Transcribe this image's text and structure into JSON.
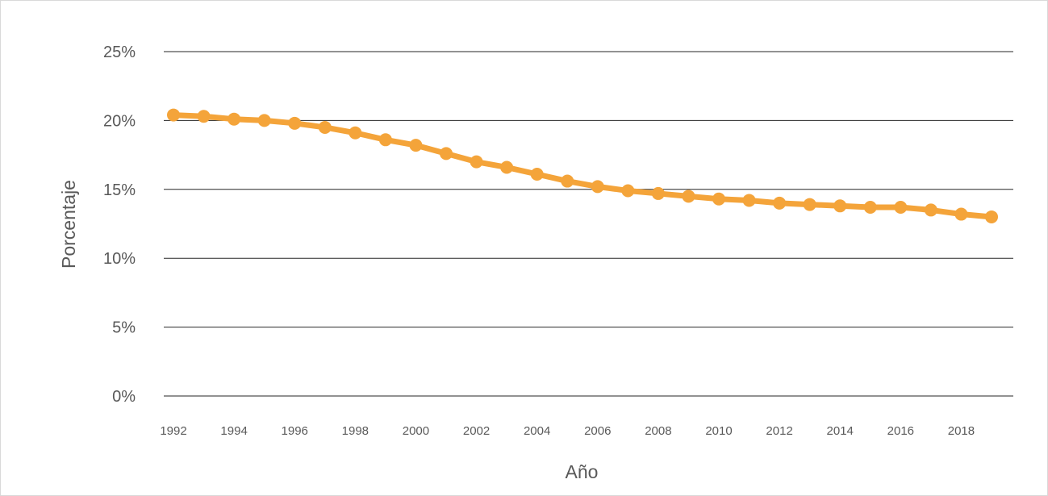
{
  "chart_data": {
    "type": "line",
    "title": "",
    "xlabel": "Año",
    "ylabel": "Porcentaje",
    "ylim": [
      0,
      25
    ],
    "y_ticks": [
      "0%",
      "5%",
      "10%",
      "15%",
      "20%",
      "25%"
    ],
    "x_ticks": [
      "1992",
      "1994",
      "1996",
      "1998",
      "2000",
      "2002",
      "2004",
      "2006",
      "2008",
      "2010",
      "2012",
      "2014",
      "2016",
      "2018"
    ],
    "grid": true,
    "legend": "none",
    "colors": {
      "series": "#f4a43a",
      "grid": "#262626",
      "text": "#595959"
    },
    "x": [
      1992,
      1993,
      1994,
      1995,
      1996,
      1997,
      1998,
      1999,
      2000,
      2001,
      2002,
      2003,
      2004,
      2005,
      2006,
      2007,
      2008,
      2009,
      2010,
      2011,
      2012,
      2013,
      2014,
      2015,
      2016,
      2017,
      2018,
      2019
    ],
    "series": [
      {
        "values": [
          20.4,
          20.3,
          20.1,
          20.0,
          19.8,
          19.5,
          19.1,
          18.6,
          18.2,
          17.6,
          17.0,
          16.6,
          16.1,
          15.6,
          15.2,
          14.9,
          14.7,
          14.5,
          14.3,
          14.2,
          14.0,
          13.9,
          13.8,
          13.7,
          13.7,
          13.5,
          13.2,
          13.0
        ]
      }
    ]
  }
}
